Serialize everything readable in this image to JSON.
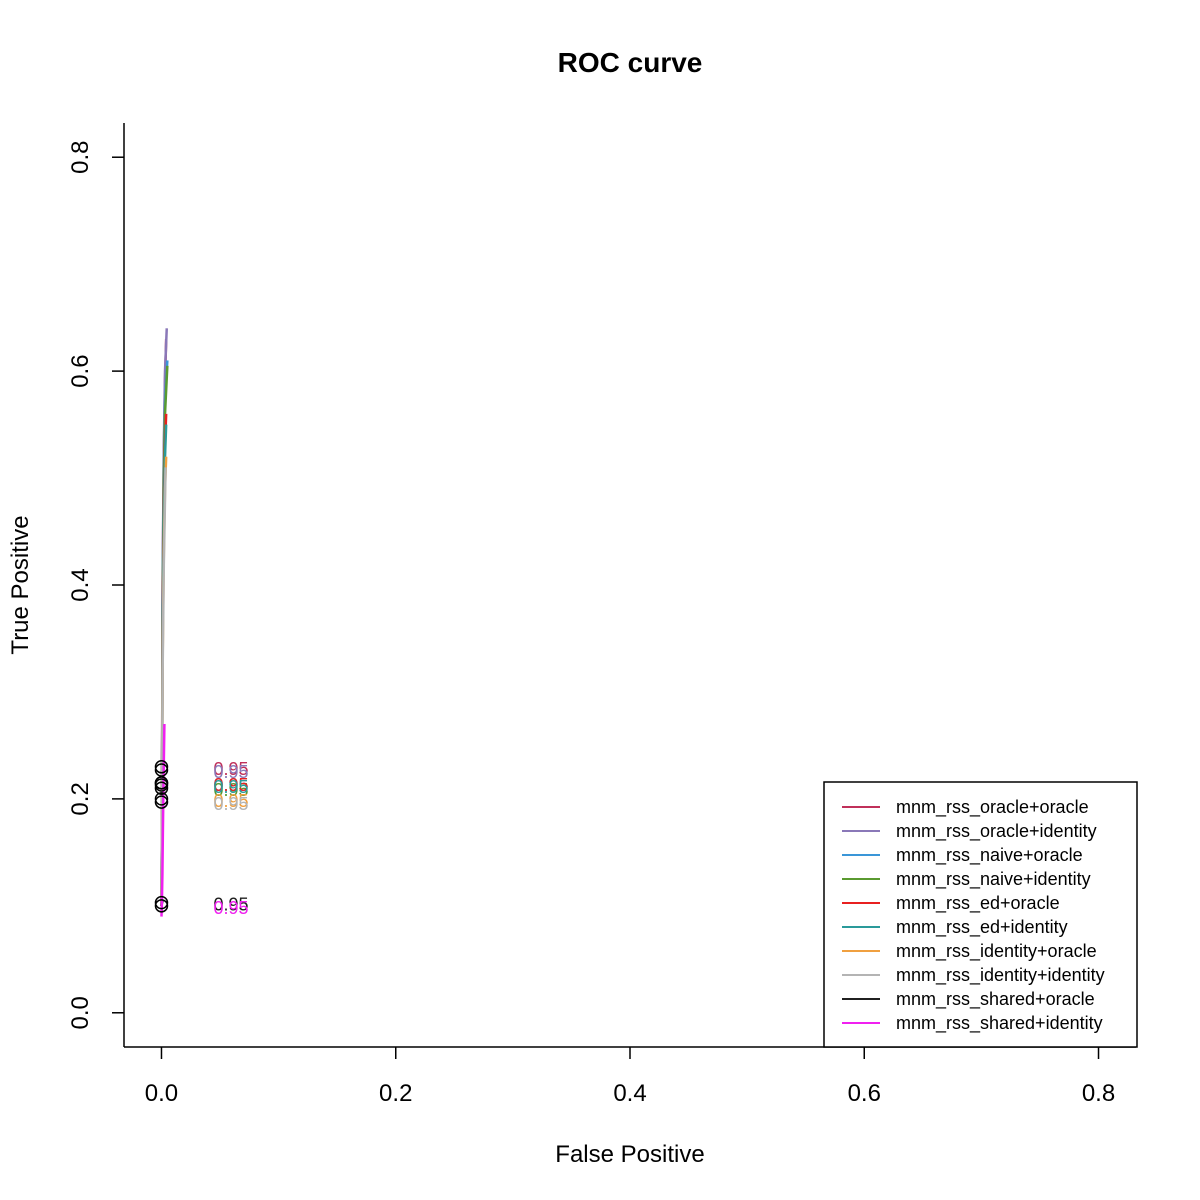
{
  "chart_data": {
    "type": "line",
    "title": "ROC curve",
    "xlabel": "False Positive",
    "ylabel": "True Positive",
    "xlim": [
      -0.032,
      0.832
    ],
    "ylim": [
      -0.032,
      0.832
    ],
    "x_ticks": [
      0.0,
      0.2,
      0.4,
      0.6,
      0.8
    ],
    "y_ticks": [
      0.0,
      0.2,
      0.4,
      0.6,
      0.8
    ],
    "x_tick_labels": [
      "0.0",
      "0.2",
      "0.4",
      "0.6",
      "0.8"
    ],
    "y_tick_labels": [
      "0.0",
      "0.2",
      "0.4",
      "0.6",
      "0.8"
    ],
    "grid": false,
    "legend_position": "bottom-right",
    "series": [
      {
        "name": "mnm_rss_oracle+oracle",
        "color": "#c0305a",
        "x": [
          0,
          0.0005,
          0.001,
          0.002,
          0.003,
          0.004
        ],
        "y": [
          0.1,
          0.23,
          0.4,
          0.52,
          0.59,
          0.63
        ],
        "marker": {
          "x": 0,
          "y": 0.23
        },
        "threshold": "0.95"
      },
      {
        "name": "mnm_rss_oracle+identity",
        "color": "#8a78b8",
        "x": [
          0,
          0.0005,
          0.001,
          0.002,
          0.003,
          0.0045
        ],
        "y": [
          0.1,
          0.23,
          0.41,
          0.53,
          0.6,
          0.64
        ],
        "marker": {
          "x": 0,
          "y": 0.227
        },
        "threshold": "0.95"
      },
      {
        "name": "mnm_rss_naive+oracle",
        "color": "#3a96d8",
        "x": [
          0,
          0.0005,
          0.001,
          0.002,
          0.003,
          0.005
        ],
        "y": [
          0.1,
          0.215,
          0.39,
          0.5,
          0.57,
          0.61
        ],
        "marker": {
          "x": 0,
          "y": 0.215
        },
        "threshold": "0.95"
      },
      {
        "name": "mnm_rss_naive+identity",
        "color": "#5a9a30",
        "x": [
          0,
          0.0005,
          0.001,
          0.002,
          0.003,
          0.005
        ],
        "y": [
          0.1,
          0.21,
          0.38,
          0.5,
          0.56,
          0.605
        ],
        "marker": {
          "x": 0,
          "y": 0.21
        },
        "threshold": "0.95"
      },
      {
        "name": "mnm_rss_ed+oracle",
        "color": "#e82020",
        "x": [
          0,
          0.0005,
          0.001,
          0.002,
          0.003,
          0.004
        ],
        "y": [
          0.1,
          0.215,
          0.37,
          0.47,
          0.53,
          0.56
        ],
        "marker": {
          "x": 0,
          "y": 0.215
        },
        "threshold": "0.95"
      },
      {
        "name": "mnm_rss_ed+identity",
        "color": "#2a9a9a",
        "x": [
          0,
          0.0005,
          0.001,
          0.002,
          0.003,
          0.004
        ],
        "y": [
          0.1,
          0.213,
          0.36,
          0.46,
          0.52,
          0.55
        ],
        "marker": {
          "x": 0,
          "y": 0.213
        },
        "threshold": "0.95"
      },
      {
        "name": "mnm_rss_identity+oracle",
        "color": "#f0a040",
        "x": [
          0,
          0.0005,
          0.001,
          0.002,
          0.003,
          0.004
        ],
        "y": [
          0.1,
          0.2,
          0.33,
          0.43,
          0.49,
          0.52
        ],
        "marker": {
          "x": 0,
          "y": 0.2
        },
        "threshold": "0.95"
      },
      {
        "name": "mnm_rss_identity+identity",
        "color": "#b4b4b4",
        "x": [
          0,
          0.0005,
          0.001,
          0.002,
          0.003,
          0.0035
        ],
        "y": [
          0.1,
          0.197,
          0.32,
          0.42,
          0.48,
          0.51
        ],
        "marker": {
          "x": 0,
          "y": 0.197
        },
        "threshold": "0.95"
      },
      {
        "name": "mnm_rss_shared+oracle",
        "color": "#202020",
        "x": [
          0,
          0.0005,
          0.001
        ],
        "y": [
          0.1,
          0.103,
          0.105
        ],
        "marker": {
          "x": 0,
          "y": 0.103
        },
        "threshold": "0.95"
      },
      {
        "name": "mnm_rss_shared+identity",
        "color": "#f020f0",
        "x": [
          0,
          0.0003,
          0.0008,
          0.0012,
          0.0018,
          0.0025
        ],
        "y": [
          0.09,
          0.1,
          0.13,
          0.17,
          0.22,
          0.27
        ],
        "marker": {
          "x": 0,
          "y": 0.1
        },
        "threshold": "0.95"
      }
    ]
  }
}
